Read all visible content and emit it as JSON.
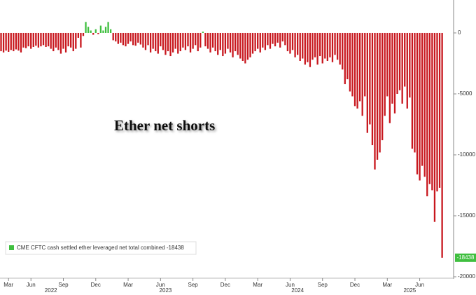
{
  "chart_data": {
    "type": "bar",
    "annotation": "Ether net shorts",
    "ylim": [
      -20000,
      2700
    ],
    "yticks": [
      0,
      -5000,
      -10000,
      -15000,
      -20000
    ],
    "grid": false,
    "negative_color": "#c8171e",
    "categories": [
      null,
      null,
      null,
      "Mar",
      null,
      null,
      null,
      null,
      null,
      null,
      null,
      null,
      "Jun",
      null,
      null,
      null,
      null,
      null,
      null,
      null,
      null,
      null,
      null,
      null,
      null,
      "Sep",
      null,
      null,
      null,
      null,
      null,
      null,
      null,
      null,
      null,
      null,
      null,
      null,
      "Dec",
      null,
      null,
      null,
      null,
      null,
      null,
      null,
      null,
      null,
      null,
      null,
      null,
      "Mar",
      null,
      null,
      null,
      null,
      null,
      null,
      null,
      null,
      null,
      null,
      null,
      null,
      "Jun",
      null,
      null,
      null,
      null,
      null,
      null,
      null,
      null,
      null,
      null,
      null,
      null,
      "Sep",
      null,
      null,
      null,
      null,
      null,
      null,
      null,
      null,
      null,
      null,
      null,
      null,
      "Dec",
      null,
      null,
      null,
      null,
      null,
      null,
      null,
      null,
      null,
      null,
      null,
      null,
      "Mar",
      null,
      null,
      null,
      null,
      null,
      null,
      null,
      null,
      null,
      null,
      null,
      null,
      "Jun",
      null,
      null,
      null,
      null,
      null,
      null,
      null,
      null,
      null,
      null,
      null,
      null,
      "Sep",
      null,
      null,
      null,
      null,
      null,
      null,
      null,
      null,
      null,
      null,
      null,
      null,
      "Dec",
      null,
      null,
      null,
      null,
      null,
      null,
      null,
      null,
      null,
      null,
      null,
      null,
      "Mar",
      null,
      null,
      null,
      null,
      null,
      null,
      null,
      null,
      null,
      null,
      null,
      null,
      "Jun",
      null,
      null,
      null,
      null,
      null,
      null,
      null,
      null,
      null
    ],
    "year_labels": [
      null,
      null,
      null,
      null,
      null,
      null,
      null,
      null,
      null,
      null,
      null,
      null,
      null,
      null,
      null,
      null,
      null,
      null,
      null,
      null,
      "2022",
      null,
      null,
      null,
      null,
      null,
      null,
      null,
      null,
      null,
      null,
      null,
      null,
      null,
      null,
      null,
      null,
      null,
      null,
      null,
      null,
      null,
      null,
      null,
      null,
      null,
      null,
      null,
      null,
      null,
      null,
      null,
      null,
      null,
      null,
      null,
      null,
      null,
      null,
      null,
      null,
      null,
      null,
      null,
      null,
      null,
      "2023",
      null,
      null,
      null,
      null,
      null,
      null,
      null,
      null,
      null,
      null,
      null,
      null,
      null,
      null,
      null,
      null,
      null,
      null,
      null,
      null,
      null,
      null,
      null,
      null,
      null,
      null,
      null,
      null,
      null,
      null,
      null,
      null,
      null,
      null,
      null,
      null,
      null,
      null,
      null,
      null,
      null,
      null,
      null,
      null,
      null,
      null,
      null,
      null,
      null,
      null,
      null,
      null,
      "2024",
      null,
      null,
      null,
      null,
      null,
      null,
      null,
      null,
      null,
      null,
      null,
      null,
      null,
      null,
      null,
      null,
      null,
      null,
      null,
      null,
      null,
      null,
      null,
      null,
      null,
      null,
      null,
      null,
      null,
      null,
      null,
      null,
      null,
      null,
      null,
      null,
      null,
      null,
      null,
      null,
      null,
      null,
      null,
      null,
      "2025",
      null,
      null,
      null,
      null,
      null,
      null,
      null,
      null,
      null,
      null,
      null,
      null,
      null
    ],
    "series": [
      {
        "name": "CME CFTC cash settled ether leveraged net total combined -18438",
        "color": "#3fbf3f",
        "values": [
          -1500,
          -1600,
          -1450,
          -1550,
          -1400,
          -1500,
          -1350,
          -1450,
          -1600,
          -1200,
          -1250,
          -1100,
          -1300,
          -1150,
          -1050,
          -1200,
          -1100,
          -1000,
          -1150,
          -1100,
          -1300,
          -1500,
          -1200,
          -1400,
          -1700,
          -1300,
          -1600,
          -1100,
          -1200,
          -1500,
          -1300,
          -400,
          -1200,
          -250,
          900,
          500,
          200,
          -150,
          300,
          -100,
          600,
          200,
          500,
          900,
          300,
          -600,
          -700,
          -900,
          -800,
          -1000,
          -1100,
          -900,
          -700,
          -1000,
          -1050,
          -800,
          -950,
          -1200,
          -1400,
          -1000,
          -1600,
          -1300,
          -1500,
          -1700,
          -1100,
          -1400,
          -1800,
          -1500,
          -1900,
          -1600,
          -1300,
          -1700,
          -1500,
          -1200,
          -1400,
          -1100,
          -1600,
          -1300,
          -1000,
          -1500,
          -1200,
          100,
          -1100,
          -1300,
          -1600,
          -1200,
          -1500,
          -1800,
          -1400,
          -1900,
          -1700,
          -1300,
          -1600,
          -2000,
          -1500,
          -1800,
          -2100,
          -2300,
          -2500,
          -2200,
          -2000,
          -1700,
          -1500,
          -1300,
          -1600,
          -1200,
          -1400,
          -1000,
          -1300,
          -900,
          -1100,
          -800,
          -1200,
          -700,
          -1000,
          -1500,
          -1700,
          -1400,
          -2000,
          -1800,
          -2300,
          -2100,
          -2600,
          -2400,
          -2800,
          -2200,
          -2000,
          -2600,
          -1900,
          -2500,
          -2100,
          -2300,
          -2000,
          -2400,
          -1800,
          -2200,
          -2600,
          -3000,
          -4200,
          -3800,
          -4800,
          -5200,
          -6000,
          -6200,
          -5600,
          -6800,
          -5200,
          -8200,
          -7500,
          -9200,
          -11200,
          -10400,
          -9800,
          -8800,
          -6800,
          -5200,
          -7400,
          -5800,
          -6600,
          -5000,
          -4700,
          -5800,
          -4400,
          -6200,
          -5300,
          -9500,
          -9800,
          -11600,
          -12100,
          -10900,
          -11800,
          -13400,
          -12400,
          -12900,
          -15500,
          -13000,
          -12700,
          -18438
        ]
      }
    ]
  }
}
